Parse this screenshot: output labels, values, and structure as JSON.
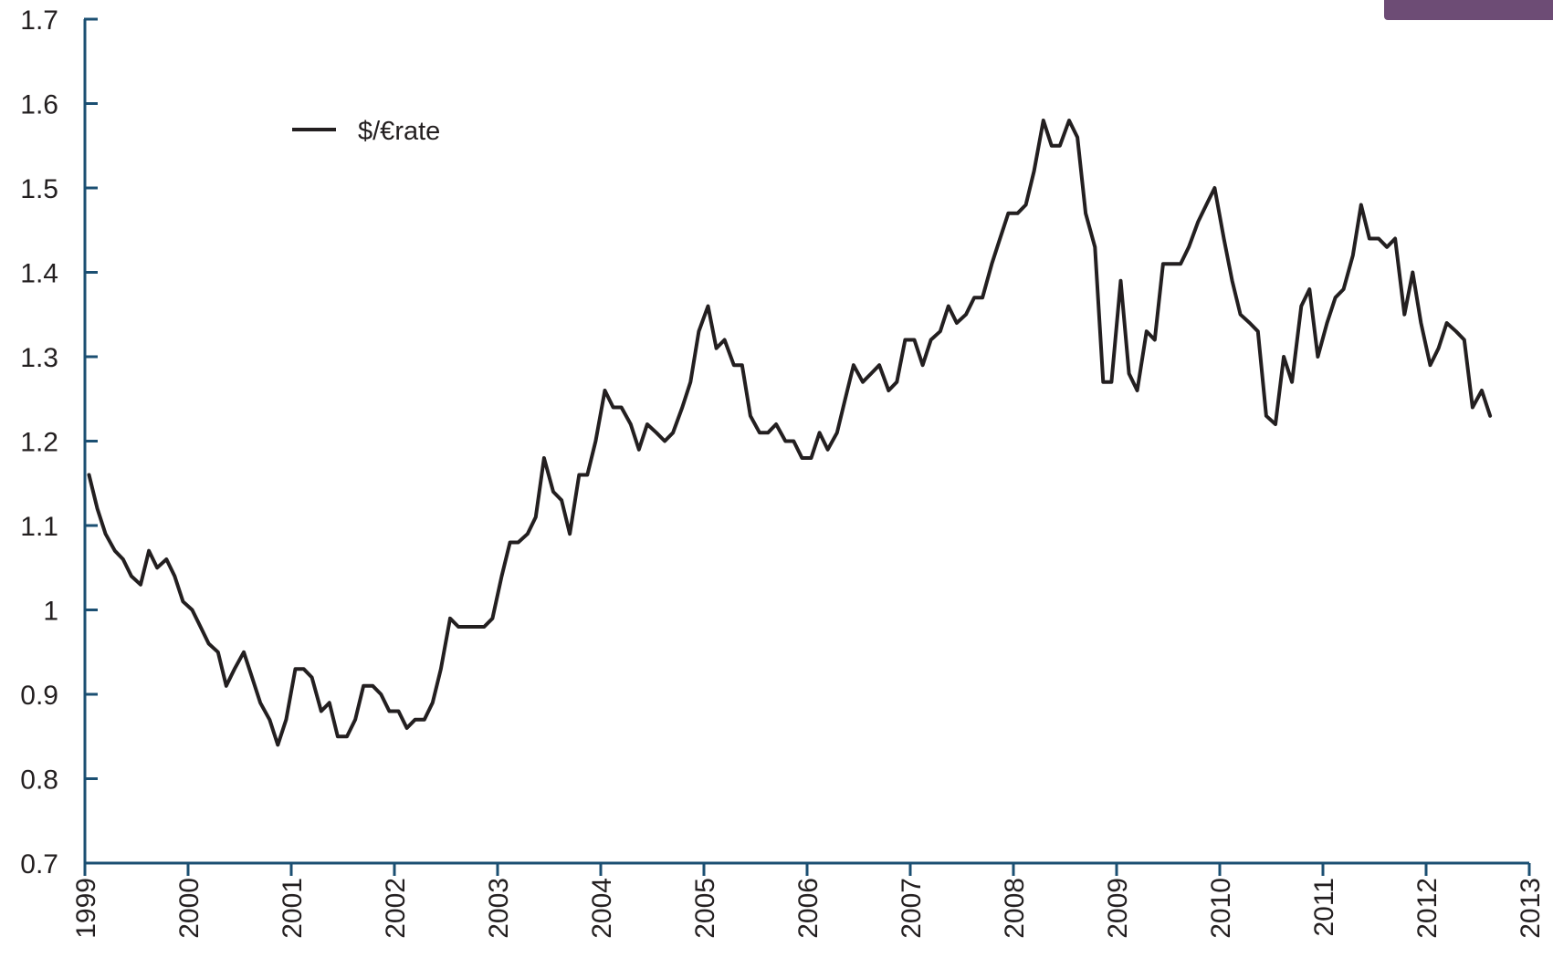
{
  "colors": {
    "axis": "#1b4f72",
    "line": "#231f20",
    "tab": "#6d4c75"
  },
  "chart_data": {
    "type": "line",
    "title": "",
    "xlabel": "",
    "ylabel": "",
    "ylim": [
      0.7,
      1.7
    ],
    "xlim": [
      1999,
      2013
    ],
    "y_ticks": [
      "1.7",
      "1.6",
      "1.5",
      "1.4",
      "1.3",
      "1.2",
      "1.1",
      "1",
      "0.9",
      "0.8",
      "0.7"
    ],
    "x_ticks": [
      "1999",
      "2000",
      "2001",
      "2002",
      "2003",
      "2004",
      "2005",
      "2006",
      "2007",
      "2008",
      "2009",
      "2010",
      "2011",
      "2012",
      "2013"
    ],
    "legend": {
      "position": "top-left"
    },
    "series": [
      {
        "name": "$/€rate",
        "x": [
          1999.04,
          1999.12,
          1999.2,
          1999.29,
          1999.37,
          1999.45,
          1999.54,
          1999.62,
          1999.7,
          1999.79,
          1999.87,
          1999.95,
          2000.04,
          2000.12,
          2000.2,
          2000.29,
          2000.37,
          2000.45,
          2000.54,
          2000.62,
          2000.7,
          2000.79,
          2000.87,
          2000.95,
          2001.04,
          2001.12,
          2001.2,
          2001.29,
          2001.37,
          2001.45,
          2001.54,
          2001.62,
          2001.7,
          2001.79,
          2001.87,
          2001.95,
          2002.04,
          2002.12,
          2002.2,
          2002.29,
          2002.37,
          2002.45,
          2002.54,
          2002.62,
          2002.7,
          2002.79,
          2002.87,
          2002.95,
          2003.04,
          2003.12,
          2003.2,
          2003.29,
          2003.37,
          2003.45,
          2003.54,
          2003.62,
          2003.7,
          2003.79,
          2003.87,
          2003.95,
          2004.04,
          2004.12,
          2004.2,
          2004.29,
          2004.37,
          2004.45,
          2004.54,
          2004.62,
          2004.7,
          2004.79,
          2004.87,
          2004.95,
          2005.04,
          2005.12,
          2005.2,
          2005.29,
          2005.37,
          2005.45,
          2005.54,
          2005.62,
          2005.7,
          2005.79,
          2005.87,
          2005.95,
          2006.04,
          2006.12,
          2006.2,
          2006.29,
          2006.37,
          2006.45,
          2006.54,
          2006.62,
          2006.7,
          2006.79,
          2006.87,
          2006.95,
          2007.04,
          2007.12,
          2007.2,
          2007.29,
          2007.37,
          2007.45,
          2007.54,
          2007.62,
          2007.7,
          2007.79,
          2007.87,
          2007.95,
          2008.04,
          2008.12,
          2008.2,
          2008.29,
          2008.37,
          2008.45,
          2008.54,
          2008.62,
          2008.7,
          2008.79,
          2008.87,
          2008.95,
          2009.04,
          2009.12,
          2009.2,
          2009.29,
          2009.37,
          2009.45,
          2009.54,
          2009.62,
          2009.7,
          2009.79,
          2009.87,
          2009.95,
          2010.04,
          2010.12,
          2010.2,
          2010.29,
          2010.37,
          2010.45,
          2010.54,
          2010.62,
          2010.7,
          2010.79,
          2010.87,
          2010.95,
          2011.04,
          2011.12,
          2011.2,
          2011.29,
          2011.37,
          2011.45,
          2011.54,
          2011.62,
          2011.7,
          2011.79,
          2011.87,
          2011.95,
          2012.04,
          2012.12,
          2012.2,
          2012.29,
          2012.37,
          2012.45,
          2012.54,
          2012.62
        ],
        "values": [
          1.16,
          1.12,
          1.09,
          1.07,
          1.06,
          1.04,
          1.03,
          1.07,
          1.05,
          1.06,
          1.04,
          1.01,
          1.0,
          0.98,
          0.96,
          0.95,
          0.91,
          0.93,
          0.95,
          0.92,
          0.89,
          0.87,
          0.84,
          0.87,
          0.93,
          0.93,
          0.92,
          0.88,
          0.89,
          0.85,
          0.85,
          0.87,
          0.91,
          0.91,
          0.9,
          0.88,
          0.88,
          0.86,
          0.87,
          0.87,
          0.89,
          0.93,
          0.99,
          0.98,
          0.98,
          0.98,
          0.98,
          0.99,
          1.04,
          1.08,
          1.08,
          1.09,
          1.11,
          1.18,
          1.14,
          1.13,
          1.09,
          1.16,
          1.16,
          1.2,
          1.26,
          1.24,
          1.24,
          1.22,
          1.19,
          1.22,
          1.21,
          1.2,
          1.21,
          1.24,
          1.27,
          1.33,
          1.36,
          1.31,
          1.32,
          1.29,
          1.29,
          1.23,
          1.21,
          1.21,
          1.22,
          1.2,
          1.2,
          1.18,
          1.18,
          1.21,
          1.19,
          1.21,
          1.25,
          1.29,
          1.27,
          1.28,
          1.29,
          1.26,
          1.27,
          1.32,
          1.32,
          1.29,
          1.32,
          1.33,
          1.36,
          1.34,
          1.35,
          1.37,
          1.37,
          1.41,
          1.44,
          1.47,
          1.47,
          1.48,
          1.52,
          1.58,
          1.55,
          1.55,
          1.58,
          1.56,
          1.47,
          1.43,
          1.27,
          1.27,
          1.39,
          1.28,
          1.26,
          1.33,
          1.32,
          1.41,
          1.41,
          1.41,
          1.43,
          1.46,
          1.48,
          1.5,
          1.44,
          1.39,
          1.35,
          1.34,
          1.33,
          1.23,
          1.22,
          1.3,
          1.27,
          1.36,
          1.38,
          1.3,
          1.34,
          1.37,
          1.38,
          1.42,
          1.48,
          1.44,
          1.44,
          1.43,
          1.44,
          1.35,
          1.4,
          1.34,
          1.29,
          1.31,
          1.34,
          1.33,
          1.32,
          1.24,
          1.26,
          1.23
        ]
      }
    ]
  }
}
